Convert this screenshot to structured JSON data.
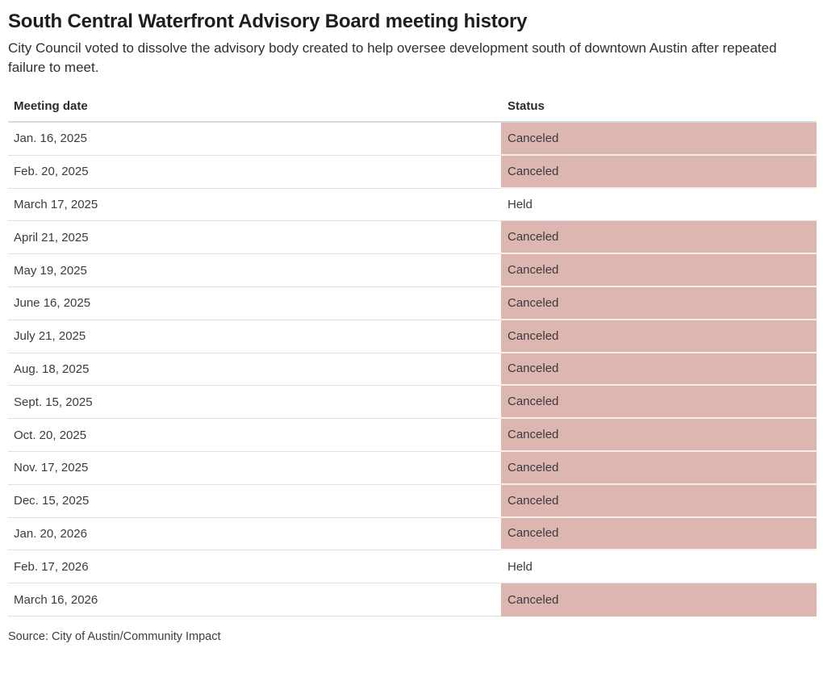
{
  "chart_data": {
    "type": "table",
    "title": "South Central Waterfront Advisory Board meeting history",
    "subtitle": "City Council voted to dissolve the advisory body created to help oversee development south of downtown Austin after repeated failure to meet.",
    "columns": [
      "Meeting date",
      "Status"
    ],
    "rows": [
      [
        "Jan. 16, 2025",
        "Canceled"
      ],
      [
        "Feb. 20, 2025",
        "Canceled"
      ],
      [
        "March 17, 2025",
        "Held"
      ],
      [
        "April 21, 2025",
        "Canceled"
      ],
      [
        "May 19, 2025",
        "Canceled"
      ],
      [
        "June 16, 2025",
        "Canceled"
      ],
      [
        "July 21, 2025",
        "Canceled"
      ],
      [
        "Aug. 18, 2025",
        "Canceled"
      ],
      [
        "Sept. 15, 2025",
        "Canceled"
      ],
      [
        "Oct. 20, 2025",
        "Canceled"
      ],
      [
        "Nov. 17, 2025",
        "Canceled"
      ],
      [
        "Dec. 15, 2025",
        "Canceled"
      ],
      [
        "Jan. 20, 2026",
        "Canceled"
      ],
      [
        "Feb. 17, 2026",
        "Held"
      ],
      [
        "March 16, 2026",
        "Canceled"
      ]
    ],
    "source": "Source: City of Austin/Community Impact",
    "status_colors": {
      "Canceled": "#ddb6b2",
      "Held": "#ffffff"
    },
    "layout": {
      "grid": "horizontal-row-dividers",
      "legend": "none",
      "highlight_column": "Status"
    }
  }
}
